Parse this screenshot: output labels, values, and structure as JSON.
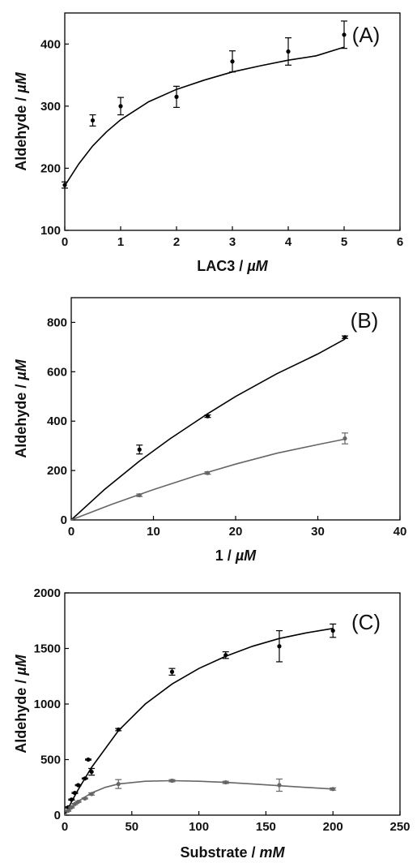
{
  "chart_data": [
    {
      "type": "scatter",
      "panel_label": "(A)",
      "xlabel": "LAC3 / ",
      "xlabel_unit": "µM",
      "ylabel": "Aldehyde / ",
      "ylabel_unit": "µM",
      "xlim": [
        0,
        6
      ],
      "ylim": [
        100,
        450
      ],
      "xticks": [
        "0",
        "1",
        "2",
        "3",
        "4",
        "5",
        "6"
      ],
      "yticks": [
        "100",
        "200",
        "300",
        "400"
      ],
      "series": [
        {
          "color": "#000000",
          "points": [
            {
              "x": 0,
              "y": 173,
              "err": 5
            },
            {
              "x": 0.5,
              "y": 277,
              "err": 9
            },
            {
              "x": 1,
              "y": 300,
              "err": 14
            },
            {
              "x": 2,
              "y": 315,
              "err": 17
            },
            {
              "x": 3,
              "y": 372,
              "err": 17
            },
            {
              "x": 4,
              "y": 388,
              "err": 22
            },
            {
              "x": 5,
              "y": 415,
              "err": 22
            }
          ],
          "fit": [
            [
              0,
              172
            ],
            [
              0.25,
              207
            ],
            [
              0.5,
              236
            ],
            [
              0.75,
              259
            ],
            [
              1,
              278
            ],
            [
              1.5,
              307
            ],
            [
              2,
              327
            ],
            [
              2.5,
              342
            ],
            [
              3,
              355
            ],
            [
              3.5,
              365
            ],
            [
              4,
              374
            ],
            [
              4.5,
              381
            ],
            [
              5,
              395
            ]
          ]
        }
      ]
    },
    {
      "type": "scatter",
      "panel_label": "(B)",
      "xlabel": "1 / ",
      "xlabel_unit": "µM",
      "ylabel": "Aldehyde / ",
      "ylabel_unit": "µM",
      "xlim": [
        0,
        40
      ],
      "ylim": [
        0,
        900
      ],
      "xticks": [
        "0",
        "10",
        "20",
        "30",
        "40"
      ],
      "yticks": [
        "0",
        "200",
        "400",
        "600",
        "800"
      ],
      "series": [
        {
          "color": "#000000",
          "points": [
            {
              "x": 8.3,
              "y": 285,
              "err": 18
            },
            {
              "x": 16.6,
              "y": 420,
              "err": 5
            },
            {
              "x": 33.3,
              "y": 740,
              "err": 5
            }
          ],
          "fit": [
            [
              0,
              0
            ],
            [
              4,
              122
            ],
            [
              8.3,
              238
            ],
            [
              12,
              328
            ],
            [
              16.6,
              430
            ],
            [
              20,
              500
            ],
            [
              25,
              592
            ],
            [
              30,
              672
            ],
            [
              33.3,
              732
            ]
          ]
        },
        {
          "color": "#666666",
          "points": [
            {
              "x": 8.3,
              "y": 100,
              "err": 5
            },
            {
              "x": 16.6,
              "y": 190,
              "err": 5
            },
            {
              "x": 33.3,
              "y": 330,
              "err": 22
            }
          ],
          "fit": [
            [
              0,
              0
            ],
            [
              5,
              64
            ],
            [
              10,
              123
            ],
            [
              15,
              177
            ],
            [
              20,
              226
            ],
            [
              25,
              270
            ],
            [
              30,
              305
            ],
            [
              33.3,
              327
            ]
          ]
        }
      ]
    },
    {
      "type": "scatter",
      "panel_label": "(C)",
      "xlabel": "Substrate / ",
      "xlabel_unit": "mM",
      "ylabel": "Aldehyde / ",
      "ylabel_unit": "µM",
      "xlim": [
        0,
        250
      ],
      "ylim": [
        0,
        2000
      ],
      "xticks": [
        "0",
        "50",
        "100",
        "150",
        "200",
        "250"
      ],
      "yticks": [
        "0",
        "500",
        "1000",
        "1500",
        "2000"
      ],
      "series": [
        {
          "color": "#000000",
          "points": [
            {
              "x": 2.5,
              "y": 70,
              "err": 5
            },
            {
              "x": 5,
              "y": 140,
              "err": 5
            },
            {
              "x": 7.5,
              "y": 200,
              "err": 5
            },
            {
              "x": 10,
              "y": 270,
              "err": 5
            },
            {
              "x": 15,
              "y": 330,
              "err": 5
            },
            {
              "x": 17.5,
              "y": 500,
              "err": 5
            },
            {
              "x": 20,
              "y": 390,
              "err": 30
            },
            {
              "x": 40,
              "y": 770,
              "err": 10
            },
            {
              "x": 80,
              "y": 1290,
              "err": 30
            },
            {
              "x": 120,
              "y": 1440,
              "err": 30
            },
            {
              "x": 160,
              "y": 1520,
              "err": 140
            },
            {
              "x": 200,
              "y": 1660,
              "err": 60
            }
          ],
          "fit": [
            [
              0,
              0
            ],
            [
              5,
              120
            ],
            [
              10,
              230
            ],
            [
              20,
              430
            ],
            [
              40,
              760
            ],
            [
              60,
              1000
            ],
            [
              80,
              1180
            ],
            [
              100,
              1320
            ],
            [
              120,
              1430
            ],
            [
              140,
              1520
            ],
            [
              160,
              1590
            ],
            [
              180,
              1640
            ],
            [
              200,
              1680
            ]
          ]
        },
        {
          "color": "#666666",
          "points": [
            {
              "x": 2.5,
              "y": 40,
              "err": 5
            },
            {
              "x": 5,
              "y": 70,
              "err": 5
            },
            {
              "x": 7.5,
              "y": 100,
              "err": 5
            },
            {
              "x": 10,
              "y": 120,
              "err": 5
            },
            {
              "x": 15,
              "y": 150,
              "err": 5
            },
            {
              "x": 20,
              "y": 190,
              "err": 10
            },
            {
              "x": 40,
              "y": 280,
              "err": 40
            },
            {
              "x": 80,
              "y": 310,
              "err": 10
            },
            {
              "x": 120,
              "y": 295,
              "err": 10
            },
            {
              "x": 160,
              "y": 270,
              "err": 55
            },
            {
              "x": 200,
              "y": 235,
              "err": 10
            }
          ],
          "fit": [
            [
              0,
              0
            ],
            [
              5,
              70
            ],
            [
              10,
              125
            ],
            [
              20,
              200
            ],
            [
              30,
              250
            ],
            [
              40,
              280
            ],
            [
              60,
              305
            ],
            [
              80,
              310
            ],
            [
              100,
              305
            ],
            [
              120,
              295
            ],
            [
              140,
              280
            ],
            [
              160,
              265
            ],
            [
              180,
              250
            ],
            [
              200,
              235
            ]
          ]
        }
      ]
    }
  ]
}
